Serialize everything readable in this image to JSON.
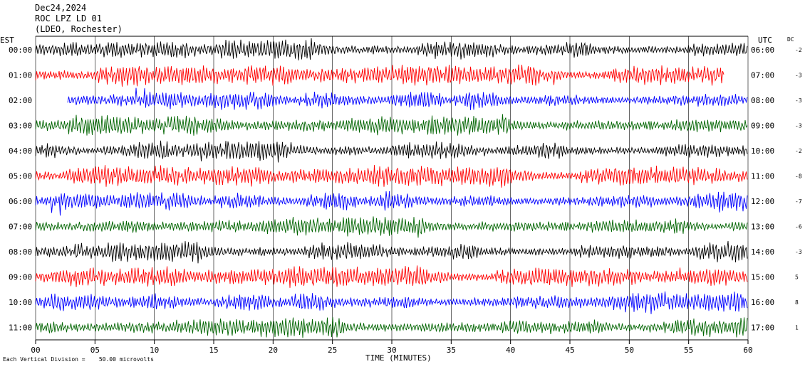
{
  "header": {
    "date": "Dec24,2024",
    "station": "ROC LPZ LD 01",
    "network": "(LDEO, Rochester)"
  },
  "chart_data": {
    "type": "line",
    "title": "Dec24,2024",
    "subtitle": "ROC LPZ LD 01 (LDEO, Rochester)",
    "xlabel": "TIME (MINUTES)",
    "xlim": [
      0,
      60
    ],
    "xticks": [
      "00",
      "05",
      "10",
      "15",
      "20",
      "25",
      "30",
      "35",
      "40",
      "45",
      "50",
      "55",
      "60"
    ],
    "left_axis_label": "EST",
    "right_axis_label": "UTC",
    "dc_label": "DC",
    "scale_note": "Each Vertical Division =    50.00 microvolts",
    "colors": [
      "#000000",
      "#ff0000",
      "#0000ff",
      "#006400"
    ],
    "rows": [
      {
        "est": "00:00",
        "utc": "06:00",
        "dc": "-2",
        "color": "#000000",
        "start": 0,
        "end": 60
      },
      {
        "est": "01:00",
        "utc": "07:00",
        "dc": "-3",
        "color": "#ff0000",
        "start": 0,
        "end": 58
      },
      {
        "est": "02:00",
        "utc": "08:00",
        "dc": "-3",
        "color": "#0000ff",
        "start": 2.7,
        "end": 60
      },
      {
        "est": "03:00",
        "utc": "09:00",
        "dc": "-3",
        "color": "#006400",
        "start": 0,
        "end": 60
      },
      {
        "est": "04:00",
        "utc": "10:00",
        "dc": "-2",
        "color": "#000000",
        "start": 0,
        "end": 60
      },
      {
        "est": "05:00",
        "utc": "11:00",
        "dc": "-8",
        "color": "#ff0000",
        "start": 0,
        "end": 60
      },
      {
        "est": "06:00",
        "utc": "12:00",
        "dc": "-7",
        "color": "#0000ff",
        "start": 0,
        "end": 60
      },
      {
        "est": "07:00",
        "utc": "13:00",
        "dc": "-6",
        "color": "#006400",
        "start": 0,
        "end": 60
      },
      {
        "est": "08:00",
        "utc": "14:00",
        "dc": "-3",
        "color": "#000000",
        "start": 0,
        "end": 60
      },
      {
        "est": "09:00",
        "utc": "15:00",
        "dc": "5",
        "color": "#ff0000",
        "start": 0,
        "end": 60
      },
      {
        "est": "10:00",
        "utc": "16:00",
        "dc": "8",
        "color": "#0000ff",
        "start": 0,
        "end": 60
      },
      {
        "est": "11:00",
        "utc": "17:00",
        "dc": "1",
        "color": "#006400",
        "start": 0,
        "end": 60
      }
    ]
  }
}
